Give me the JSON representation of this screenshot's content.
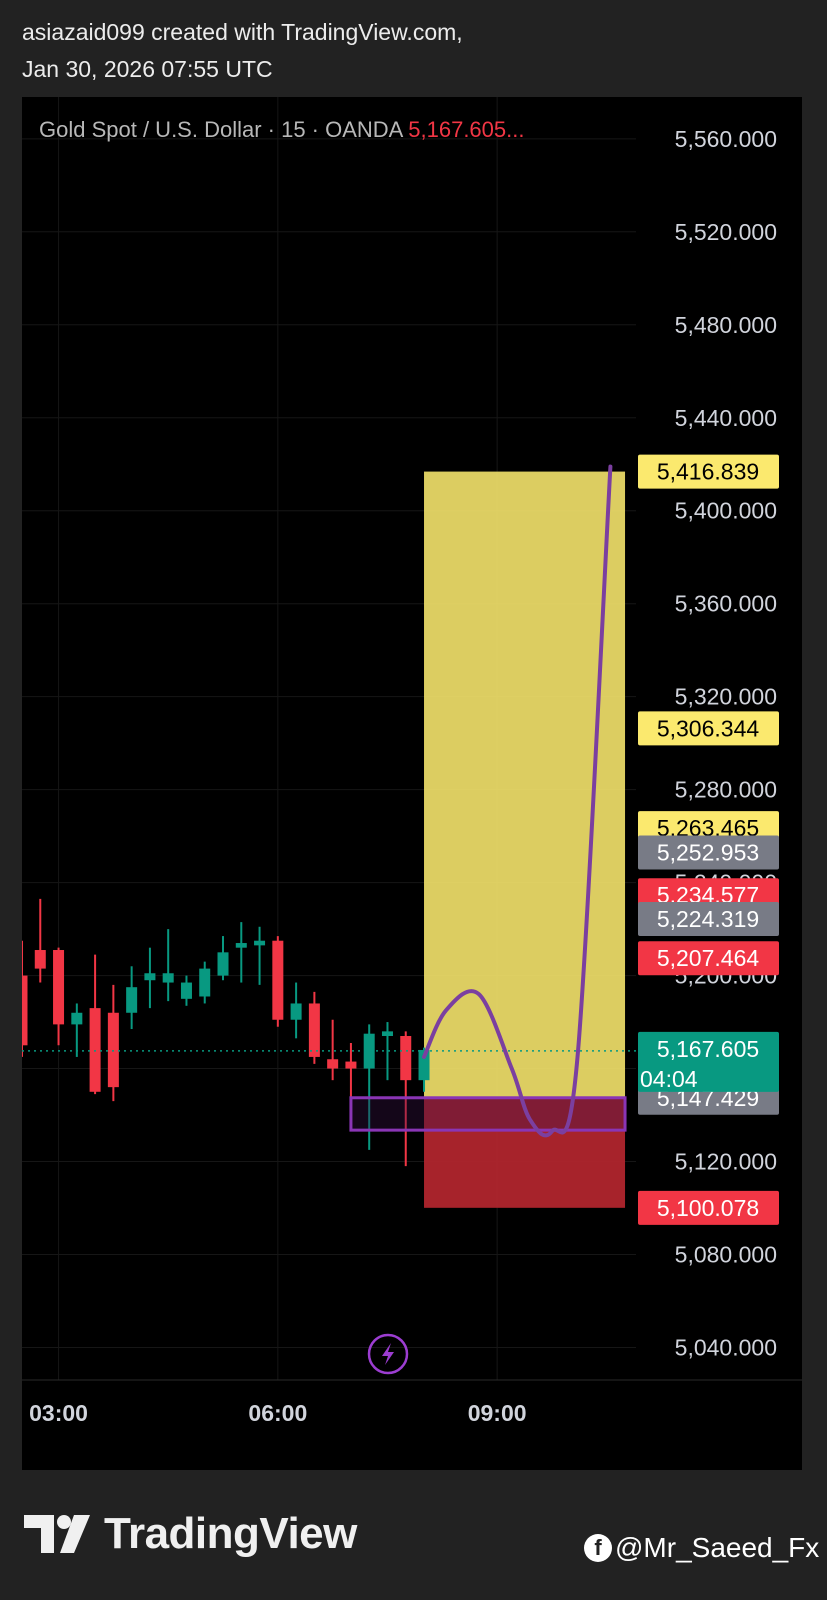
{
  "header": {
    "line1": "asiazaid099 created with TradingView.com,",
    "line2": "Jan 30, 2026 07:55 UTC"
  },
  "legend": {
    "symbol": "Gold Spot / U.S. Dollar · 15 · OANDA",
    "price": "5,167.605..."
  },
  "footer": {
    "brand": "TradingView",
    "social_icon": "facebook-icon",
    "social_handle": "@Mr_Saeed_Fx"
  },
  "colors": {
    "up": "#089981",
    "down": "#f23645",
    "target_zone": "#fbe96e",
    "stop_zone": "#b5262f",
    "projection_path": "#7b3fa0",
    "entry_box": "#8a35b5"
  },
  "chart_data": {
    "type": "candlestick",
    "interval": "15",
    "y_axis": {
      "ticks": [
        "5,560.000",
        "5,520.000",
        "5,480.000",
        "5,440.000",
        "5,400.000",
        "5,360.000",
        "5,320.000",
        "5,280.000",
        "5,240.000",
        "5,200.000",
        "5,160.000",
        "5,120.000",
        "5,080.000",
        "5,040.000"
      ],
      "tick_values": [
        5560,
        5520,
        5480,
        5440,
        5400,
        5360,
        5320,
        5280,
        5240,
        5200,
        5160,
        5120,
        5080,
        5040
      ],
      "range": [
        5026,
        5578
      ]
    },
    "x_axis": {
      "ticks": [
        "03:00",
        "06:00",
        "09:00"
      ],
      "tick_hours": [
        3,
        6,
        9
      ],
      "range_hours": [
        2.5,
        10.9
      ]
    },
    "candles": [
      {
        "t": 2.5,
        "o": 5200,
        "h": 5215,
        "l": 5165,
        "c": 5170
      },
      {
        "t": 2.75,
        "o": 5211,
        "h": 5233,
        "l": 5197,
        "c": 5203
      },
      {
        "t": 3.0,
        "o": 5211,
        "h": 5212,
        "l": 5170,
        "c": 5179
      },
      {
        "t": 3.25,
        "o": 5179,
        "h": 5188,
        "l": 5165,
        "c": 5184
      },
      {
        "t": 3.5,
        "o": 5186,
        "h": 5209,
        "l": 5149,
        "c": 5150
      },
      {
        "t": 3.75,
        "o": 5184,
        "h": 5196,
        "l": 5146,
        "c": 5152
      },
      {
        "t": 4.0,
        "o": 5184,
        "h": 5204,
        "l": 5177,
        "c": 5195
      },
      {
        "t": 4.25,
        "o": 5198,
        "h": 5212,
        "l": 5186,
        "c": 5201
      },
      {
        "t": 4.5,
        "o": 5197,
        "h": 5220,
        "l": 5189,
        "c": 5201
      },
      {
        "t": 4.75,
        "o": 5190,
        "h": 5200,
        "l": 5187,
        "c": 5197
      },
      {
        "t": 5.0,
        "o": 5191,
        "h": 5206,
        "l": 5188,
        "c": 5203
      },
      {
        "t": 5.25,
        "o": 5200,
        "h": 5217,
        "l": 5198,
        "c": 5210
      },
      {
        "t": 5.5,
        "o": 5212,
        "h": 5223,
        "l": 5197,
        "c": 5214
      },
      {
        "t": 5.75,
        "o": 5213,
        "h": 5221,
        "l": 5196,
        "c": 5215
      },
      {
        "t": 6.0,
        "o": 5215,
        "h": 5217,
        "l": 5178,
        "c": 5181
      },
      {
        "t": 6.25,
        "o": 5181,
        "h": 5197,
        "l": 5173,
        "c": 5188
      },
      {
        "t": 6.5,
        "o": 5188,
        "h": 5193,
        "l": 5162,
        "c": 5165
      },
      {
        "t": 6.75,
        "o": 5164,
        "h": 5181,
        "l": 5155,
        "c": 5160
      },
      {
        "t": 7.0,
        "o": 5163,
        "h": 5171,
        "l": 5142,
        "c": 5160
      },
      {
        "t": 7.25,
        "o": 5160,
        "h": 5179,
        "l": 5125,
        "c": 5175
      },
      {
        "t": 7.5,
        "o": 5174,
        "h": 5180,
        "l": 5155,
        "c": 5176
      },
      {
        "t": 7.75,
        "o": 5174,
        "h": 5176,
        "l": 5118,
        "c": 5155
      },
      {
        "t": 8.0,
        "o": 5155,
        "h": 5169,
        "l": 5150,
        "c": 5168
      }
    ],
    "current_price": 5167.605,
    "price_labels": [
      {
        "text": "5,416.839",
        "value": 5416.839,
        "bg": "#fbe96e",
        "fg": "#000000"
      },
      {
        "text": "5,306.344",
        "value": 5306.344,
        "bg": "#fbe96e",
        "fg": "#000000"
      },
      {
        "text": "5,263.465",
        "value": 5263.465,
        "bg": "#fbe96e",
        "fg": "#000000"
      },
      {
        "text": "5,252.953",
        "value": 5252.953,
        "bg": "#787b86",
        "fg": "#ffffff"
      },
      {
        "text": "5,234.577",
        "value": 5234.577,
        "bg": "#f23645",
        "fg": "#ffffff"
      },
      {
        "text": "5,224.319",
        "value": 5224.319,
        "bg": "#787b86",
        "fg": "#ffffff"
      },
      {
        "text": "5,207.464",
        "value": 5207.464,
        "bg": "#f23645",
        "fg": "#ffffff"
      },
      {
        "text": "5,147.429",
        "value": 5147.429,
        "bg": "#787b86",
        "fg": "#ffffff"
      },
      {
        "text": "5,100.078",
        "value": 5100.078,
        "bg": "#f23645",
        "fg": "#ffffff"
      }
    ],
    "current_label": {
      "price": "5,167.605",
      "countdown": "04:04",
      "value": 5167.605,
      "bg": "#089981"
    },
    "position": {
      "t_start": 8.0,
      "t_end": 10.75,
      "target": 5416.839,
      "entry": 5147.429,
      "stop": 5100.078
    },
    "entry_box": {
      "t_start": 7.0,
      "t_end": 10.75,
      "top": 5147.429,
      "bottom": 5133.5
    },
    "projection": [
      {
        "t": 8.0,
        "p": 5165
      },
      {
        "t": 8.3,
        "p": 5185
      },
      {
        "t": 8.75,
        "p": 5192
      },
      {
        "t": 9.2,
        "p": 5160
      },
      {
        "t": 9.45,
        "p": 5138
      },
      {
        "t": 9.75,
        "p": 5133
      },
      {
        "t": 10.1,
        "p": 5165
      },
      {
        "t": 10.55,
        "p": 5419
      }
    ]
  }
}
